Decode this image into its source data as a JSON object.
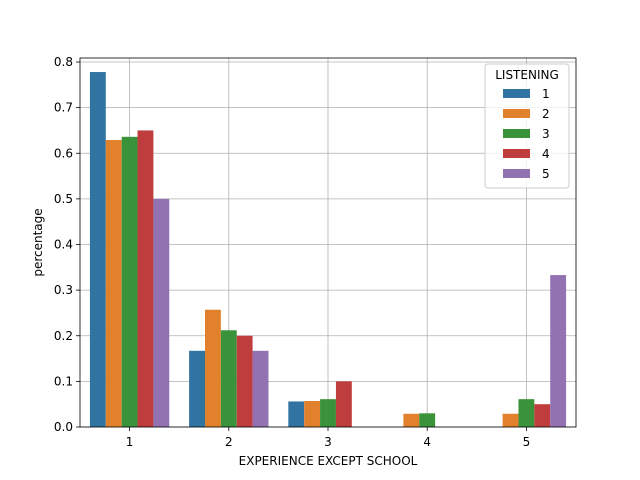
{
  "chart_data": {
    "type": "bar",
    "xlabel": "EXPERIENCE EXCEPT SCHOOL",
    "ylabel": "percentage",
    "categories": [
      "1",
      "2",
      "3",
      "4",
      "5"
    ],
    "ylim": [
      0,
      0.8
    ],
    "yticks": [
      "0.0",
      "0.1",
      "0.2",
      "0.3",
      "0.4",
      "0.5",
      "0.6",
      "0.7",
      "0.8"
    ],
    "grid": true,
    "legend": {
      "title": "LISTENING",
      "placement": "top-right"
    },
    "series": [
      {
        "name": "1",
        "color": "#3274a1",
        "values": [
          0.778,
          0.167,
          0.056,
          0,
          0
        ]
      },
      {
        "name": "2",
        "color": "#e1812c",
        "values": [
          0.629,
          0.257,
          0.057,
          0.029,
          0.029
        ]
      },
      {
        "name": "3",
        "color": "#3a923a",
        "values": [
          0.636,
          0.212,
          0.061,
          0.03,
          0.061
        ]
      },
      {
        "name": "4",
        "color": "#c03d3e",
        "values": [
          0.65,
          0.2,
          0.1,
          0,
          0.05
        ]
      },
      {
        "name": "5",
        "color": "#9372b2",
        "values": [
          0.5,
          0.167,
          0,
          0,
          0.333
        ]
      }
    ]
  }
}
